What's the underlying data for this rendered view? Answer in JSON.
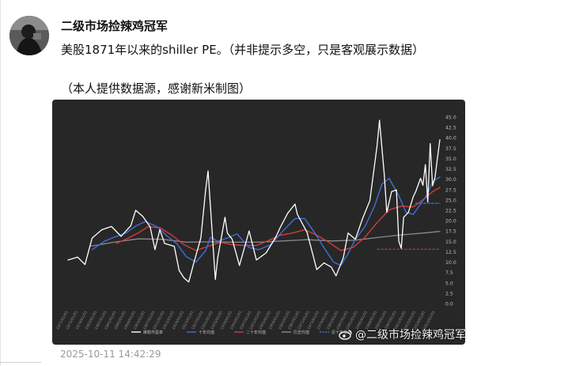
{
  "post": {
    "author": "二级市场捡辣鸡冠军",
    "text_line1": "美股1871年以来的shiller PE。（并非提示多空，只是客观展示数据）",
    "text_line2": "（本人提供数据源，感谢新米制图）",
    "timestamp": "2025-10-11 14:42:29",
    "watermark": "@二级市场捡辣鸡冠军"
  },
  "colors": {
    "chart_bg": "#272727",
    "pe_line": "#ffffff",
    "ma10_line": "#3f6fd6",
    "ma20_line": "#d83a3a",
    "hist_line": "#8a8a8a",
    "dashed_ref": "#3f6fd6",
    "red_ref": "#d83a3a"
  },
  "chart_data": {
    "type": "line",
    "ylim": [
      0,
      45
    ],
    "y_ticks": [
      "0.0",
      "2.5",
      "5.0",
      "7.5",
      "10.0",
      "12.5",
      "15.0",
      "17.5",
      "20.0",
      "22.5",
      "25.0",
      "27.5",
      "30.0",
      "32.5",
      "35.0",
      "37.5",
      "40.0",
      "42.5",
      "45.0"
    ],
    "x_range": [
      1871,
      2025
    ],
    "legend": [
      "席勒市盈率",
      "十年均值",
      "二十年均值",
      "历史均值",
      "近十年低点"
    ],
    "series": [
      {
        "name": "席勒市盈率",
        "x": [
          1871,
          1875,
          1878,
          1881,
          1885,
          1889,
          1893,
          1897,
          1899,
          1902,
          1905,
          1907,
          1909,
          1911,
          1915,
          1917,
          1919,
          1921,
          1923,
          1926,
          1928,
          1929,
          1932,
          1933,
          1936,
          1937,
          1939,
          1942,
          1946,
          1949,
          1953,
          1957,
          1959,
          1962,
          1965,
          1966,
          1970,
          1974,
          1977,
          1980,
          1982,
          1985,
          1987,
          1990,
          1993,
          1996,
          1999,
          2000,
          2002,
          2003,
          2005,
          2007,
          2008,
          2009,
          2010,
          2012,
          2014,
          2015,
          2017,
          2018,
          2019,
          2020,
          2021,
          2022,
          2023,
          2024,
          2025
        ],
        "values": [
          10.5,
          11.2,
          9.4,
          15.8,
          17.8,
          18.6,
          16.2,
          18.8,
          22.5,
          21.0,
          18.5,
          13.0,
          17.8,
          14.5,
          13.8,
          8.0,
          6.2,
          5.2,
          9.6,
          15.8,
          27.5,
          32.0,
          5.8,
          11.0,
          20.8,
          17.0,
          15.5,
          9.2,
          17.5,
          10.5,
          12.2,
          16.0,
          18.5,
          21.8,
          24.0,
          21.5,
          17.2,
          8.2,
          9.8,
          8.8,
          6.7,
          11.0,
          17.0,
          15.5,
          20.5,
          24.8,
          38.0,
          44.2,
          31.0,
          22.0,
          27.0,
          27.4,
          15.0,
          13.3,
          20.8,
          22.0,
          25.8,
          27.0,
          30.2,
          28.5,
          33.5,
          24.5,
          38.6,
          28.4,
          30.5,
          35.0,
          39.5
        ]
      },
      {
        "name": "十年均值",
        "x": [
          1881,
          1886,
          1890,
          1895,
          1899,
          1903,
          1908,
          1912,
          1916,
          1920,
          1924,
          1928,
          1930,
          1933,
          1937,
          1941,
          1946,
          1950,
          1955,
          1960,
          1965,
          1969,
          1973,
          1977,
          1981,
          1984,
          1987,
          1990,
          1994,
          1998,
          2001,
          2004,
          2008,
          2011,
          2014,
          2017,
          2020,
          2022,
          2025
        ],
        "values": [
          13.0,
          15.0,
          16.0,
          17.0,
          18.7,
          19.8,
          18.5,
          16.3,
          14.5,
          11.3,
          10.0,
          12.8,
          16.0,
          15.0,
          15.8,
          16.8,
          13.5,
          13.0,
          14.2,
          17.5,
          20.5,
          20.5,
          17.2,
          13.5,
          10.0,
          9.2,
          12.0,
          15.5,
          18.6,
          23.6,
          28.8,
          30.2,
          26.0,
          22.0,
          21.5,
          24.0,
          26.5,
          29.5,
          30.5
        ]
      },
      {
        "name": "二十年均值",
        "x": [
          1891,
          1896,
          1900,
          1904,
          1909,
          1914,
          1919,
          1924,
          1929,
          1934,
          1939,
          1944,
          1949,
          1954,
          1959,
          1964,
          1969,
          1974,
          1979,
          1984,
          1989,
          1994,
          1999,
          2004,
          2009,
          2014,
          2019,
          2022,
          2025
        ],
        "values": [
          14.5,
          15.8,
          17.0,
          18.5,
          18.3,
          16.5,
          14.2,
          12.8,
          13.8,
          14.8,
          14.2,
          14.0,
          14.0,
          15.2,
          16.5,
          17.0,
          17.8,
          16.5,
          14.8,
          12.8,
          13.5,
          16.0,
          19.5,
          22.6,
          23.5,
          23.3,
          25.5,
          27.0,
          28.0
        ]
      },
      {
        "name": "历史均值",
        "x": [
          1880,
          1890,
          1900,
          1910,
          1920,
          1930,
          1940,
          1950,
          1960,
          1970,
          1980,
          1990,
          2000,
          2010,
          2020,
          2025
        ],
        "values": [
          13.8,
          14.8,
          15.6,
          15.5,
          14.8,
          14.9,
          14.8,
          14.8,
          15.1,
          15.4,
          15.1,
          15.3,
          16.0,
          16.6,
          17.1,
          17.4
        ]
      },
      {
        "name": "近十年低点",
        "x": [
          2015,
          2025
        ],
        "values": [
          24.2,
          24.2
        ]
      }
    ]
  }
}
